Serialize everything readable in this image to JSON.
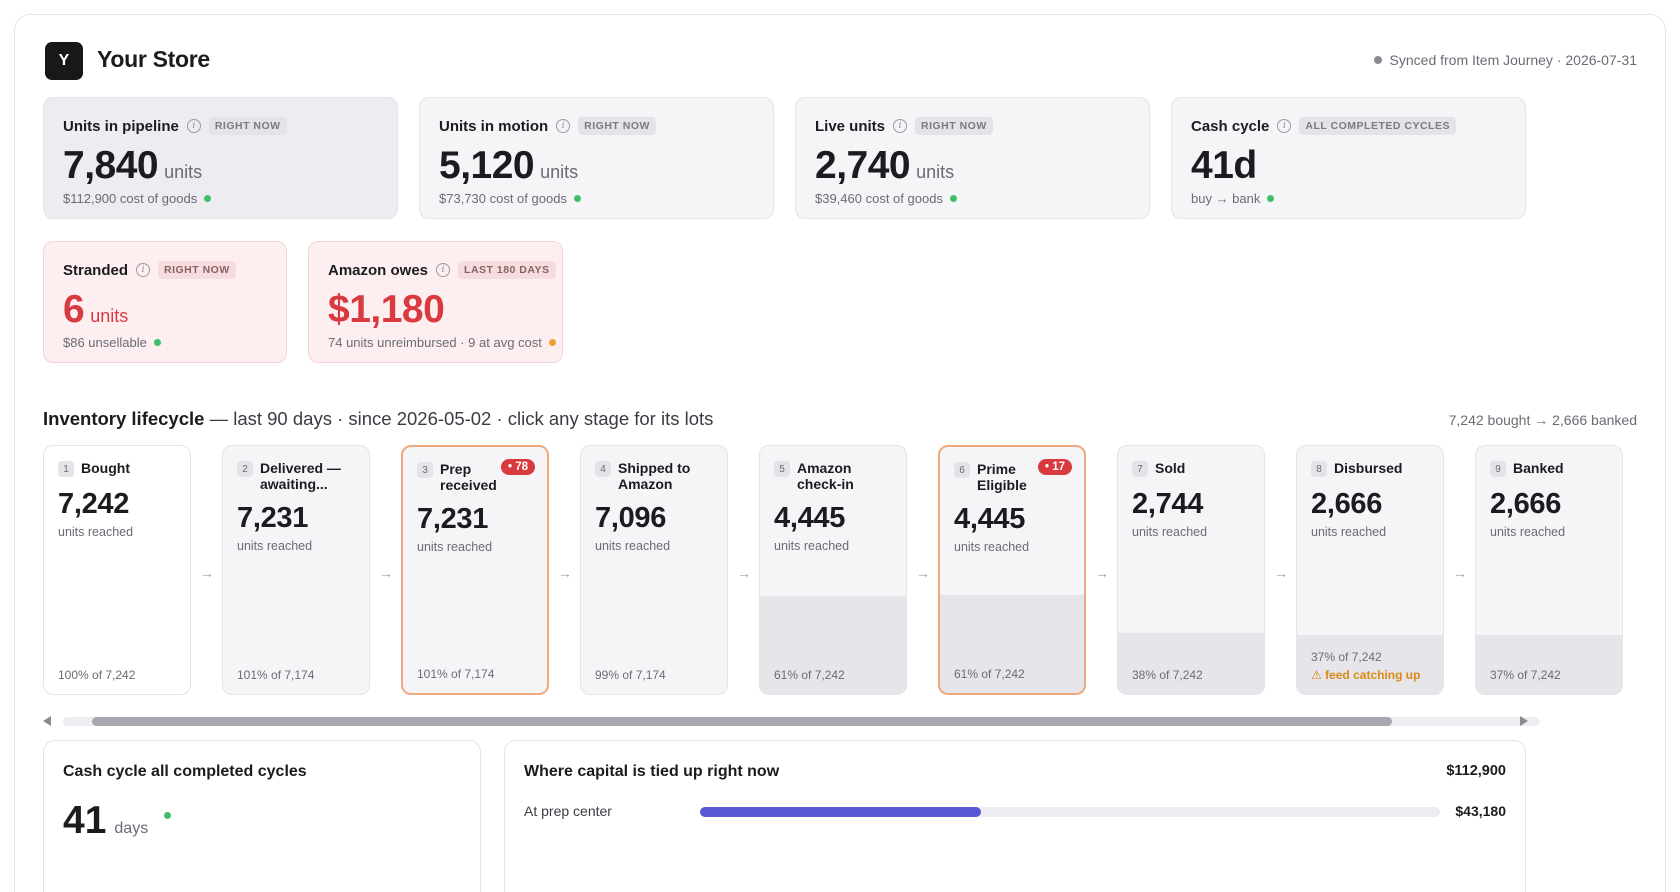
{
  "header": {
    "logo_letter": "Y",
    "store_name": "Your Store",
    "sync_text": "Synced from Item Journey · 2026-07-31"
  },
  "kpis": [
    {
      "label": "Units in pipeline",
      "tag": "RIGHT NOW",
      "value": "7,840",
      "unit": "units",
      "sub": "$112,900 cost of goods",
      "status": "green"
    },
    {
      "label": "Units in motion",
      "tag": "RIGHT NOW",
      "value": "5,120",
      "unit": "units",
      "sub": "$73,730 cost of goods",
      "status": "green"
    },
    {
      "label": "Live units",
      "tag": "RIGHT NOW",
      "value": "2,740",
      "unit": "units",
      "sub": "$39,460 cost of goods",
      "status": "green"
    },
    {
      "label": "Cash cycle",
      "tag": "ALL COMPLETED CYCLES",
      "value": "41d",
      "unit": "",
      "sub": "buy → bank",
      "status": "green"
    },
    {
      "label": "Stranded",
      "tag": "RIGHT NOW",
      "value": "6",
      "unit": "units",
      "sub": "$86 unsellable",
      "status": "green"
    },
    {
      "label": "Amazon owes",
      "tag": "LAST 180 DAYS",
      "value": "$1,180",
      "unit": "",
      "sub": "74 units unreimbursed · 9 at avg cost",
      "status": "orange"
    }
  ],
  "lifecycle": {
    "title": "Inventory lifecycle",
    "subtitle": "— last 90 days · since 2026-05-02 · click any stage for its lots",
    "summary": "7,242 bought → 2,666 banked",
    "stages": [
      {
        "num": "1",
        "name": "Bought",
        "value": "7,242",
        "caption": "units reached",
        "pct_text": "100% of 7,242",
        "fill": 0.0
      },
      {
        "num": "2",
        "name": "Delivered — awaiting...",
        "value": "7,231",
        "caption": "units reached",
        "pct_text": "101% of 7,174",
        "fill": 0.0
      },
      {
        "num": "3",
        "name": "Prep received",
        "value": "7,231",
        "caption": "units reached",
        "pct_text": "101% of 7,174",
        "badge": "• 78",
        "fill": 0.0
      },
      {
        "num": "4",
        "name": "Shipped to Amazon",
        "value": "7,096",
        "caption": "units reached",
        "pct_text": "99% of 7,174",
        "fill": 0.0
      },
      {
        "num": "5",
        "name": "Amazon check-in",
        "value": "4,445",
        "caption": "units reached",
        "pct_text": "61% of 7,242",
        "fill": 0.61
      },
      {
        "num": "6",
        "name": "Prime Eligible",
        "value": "4,445",
        "caption": "units reached",
        "pct_text": "61% of 7,242",
        "badge": "• 17",
        "fill": 0.61
      },
      {
        "num": "7",
        "name": "Sold",
        "value": "2,744",
        "caption": "units reached",
        "pct_text": "38% of 7,242",
        "fill": 0.38
      },
      {
        "num": "8",
        "name": "Disbursed",
        "value": "2,666",
        "caption": "units reached",
        "pct_text": "37% of 7,242",
        "warn": "⚠ feed catching up",
        "fill": 0.37
      },
      {
        "num": "9",
        "name": "Banked",
        "value": "2,666",
        "caption": "units reached",
        "pct_text": "37% of 7,242",
        "fill": 0.37
      }
    ],
    "arrow": "→"
  },
  "cash_cycle_panel": {
    "title": "Cash cycle all completed cycles",
    "value": "41",
    "unit": "days"
  },
  "capital_panel": {
    "title": "Where capital is tied up right now",
    "total": "$112,900",
    "rows": [
      {
        "label": "At prep center",
        "value": "$43,180",
        "fraction": 0.38
      }
    ]
  },
  "colors": {
    "accent_bar": "#5b58d6",
    "alert_red": "#d93a3f",
    "status_green": "#3ec06b",
    "warn_orange": "#f0a030"
  }
}
